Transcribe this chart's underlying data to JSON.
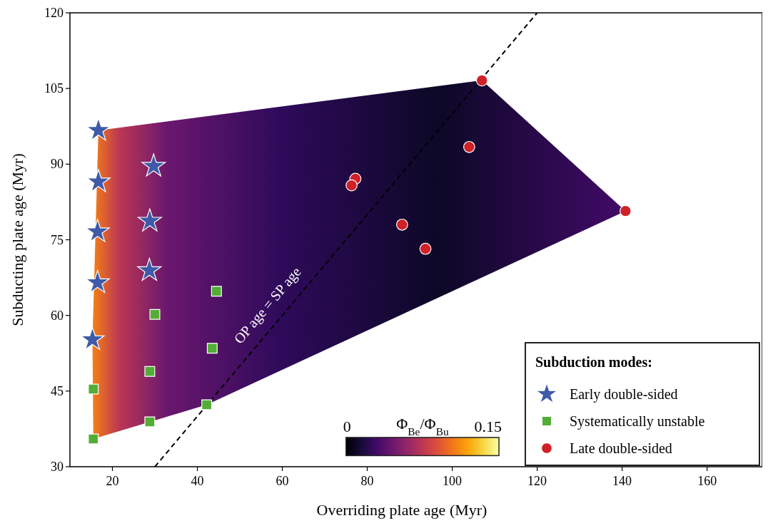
{
  "chart_data": {
    "type": "scatter",
    "xlabel": "Overriding plate age (Myr)",
    "ylabel": "Subducting plate age (Myr)",
    "xlim": [
      10,
      173
    ],
    "ylim": [
      30,
      120
    ],
    "xticks": [
      20,
      40,
      60,
      80,
      100,
      120,
      140,
      160
    ],
    "yticks": [
      30,
      45,
      60,
      75,
      90,
      105,
      120
    ],
    "legend": "bottom right",
    "legend_title": "Subduction modes:",
    "annotations": [
      "OP age = SP age",
      "0",
      "Φ$_{Be}$/Φ$_{Bu}$",
      "0.15"
    ],
    "series": [
      {
        "type": "line",
        "color": "#000000",
        "line_style": "dashed",
        "x": [
          30,
          120
        ],
        "values": [
          30,
          120
        ]
      },
      {
        "name": "Early double-sided",
        "color": "#3f5aa8",
        "marker": "star",
        "x": [
          16.7,
          16.7,
          16.5,
          16.5,
          15.3,
          29.7,
          28.8,
          28.7
        ],
        "values": [
          96.7,
          86.5,
          76.6,
          66.5,
          55.2,
          89.6,
          78.7,
          68.9
        ]
      },
      {
        "name": "Systematically unstable",
        "color": "#52ad35",
        "marker": "square",
        "x": [
          44.5,
          30,
          43.5,
          28.8,
          15.5,
          42.2,
          28.8,
          15.5
        ],
        "values": [
          64.8,
          60.2,
          53.5,
          48.9,
          45.4,
          42.3,
          38.9,
          35.5
        ]
      },
      {
        "name": "Late double-sided",
        "color": "#cf2127",
        "marker": "circle",
        "x": [
          107.0,
          104.0,
          77.2,
          76.3,
          88.2,
          93.7,
          140.8
        ],
        "values": [
          106.6,
          93.4,
          87.1,
          85.8,
          78.0,
          73.2,
          80.7
        ]
      }
    ]
  }
}
